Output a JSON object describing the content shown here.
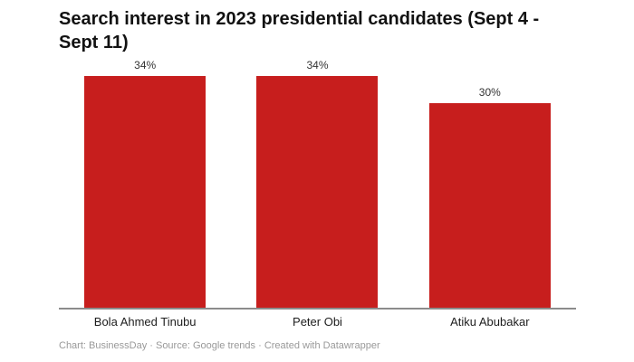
{
  "header": {
    "title_display": "Search interest in 2023 presidential candidates (Sept 4 -\nSept 11)"
  },
  "chart_data": {
    "type": "bar",
    "title": "Search interest in 2023 presidential candidates (Sept 4 - Sept 11)",
    "categories": [
      "Bola Ahmed Tinubu",
      "Peter Obi",
      "Atiku Abubakar"
    ],
    "values": [
      34,
      34,
      30
    ],
    "value_labels": [
      "34%",
      "34%",
      "30%"
    ],
    "unit": "%",
    "xlabel": "",
    "ylabel": "",
    "ylim": [
      0,
      34
    ],
    "grid": false,
    "legend": "none",
    "bar_color": "#c71e1d",
    "axis_line_color": "#8c8c8c"
  },
  "footer": {
    "credit": "Chart: BusinessDay · Source: Google trends · Created with Datawrapper"
  }
}
